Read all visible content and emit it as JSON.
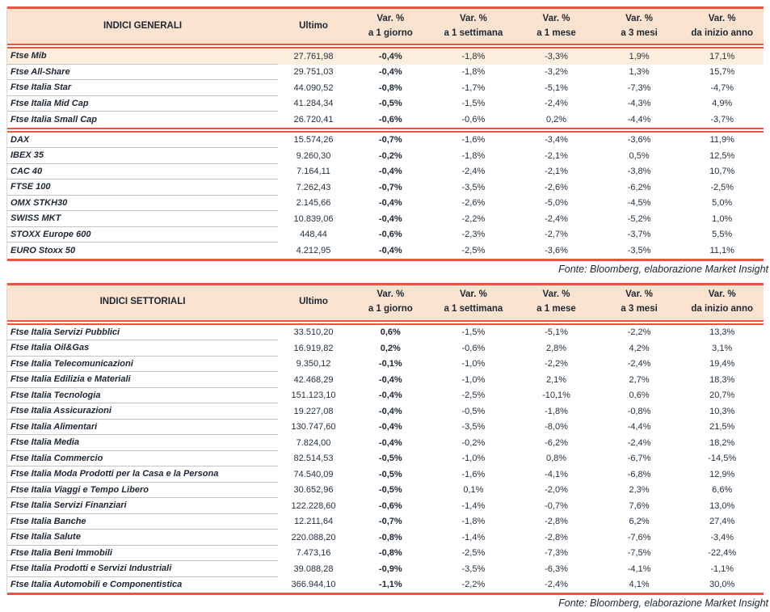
{
  "colors": {
    "rule_red": "#f0543c",
    "header_bg": "#fbe3d0",
    "stripe_bg": "#fdeede",
    "text": "#1c2733",
    "row_separator": "#c4c4c4"
  },
  "tables": [
    {
      "title": "INDICI GENERALI",
      "ultimo_header": "Ultimo",
      "var_headers": [
        {
          "line1": "Var. %",
          "line2": "a 1 giorno"
        },
        {
          "line1": "Var. %",
          "line2": "a 1 settimana"
        },
        {
          "line1": "Var. %",
          "line2": "a 1 mese"
        },
        {
          "line1": "Var. %",
          "line2": "a 3 mesi"
        },
        {
          "line1": "Var. %",
          "line2": "da inizio anno"
        }
      ],
      "sections": [
        {
          "rows": [
            {
              "name": "Ftse Mib",
              "ultimo": "27.761,98",
              "vals": [
                "-0,4%",
                "-1,8%",
                "-3,3%",
                "1,9%",
                "17,1%"
              ],
              "striped": true
            },
            {
              "name": "Ftse All-Share",
              "ultimo": "29.751,03",
              "vals": [
                "-0,4%",
                "-1,8%",
                "-3,2%",
                "1,3%",
                "15,7%"
              ],
              "striped": false
            },
            {
              "name": "Ftse Italia Star",
              "ultimo": "44.090,52",
              "vals": [
                "-0,8%",
                "-1,7%",
                "-5,1%",
                "-7,3%",
                "-4,7%"
              ],
              "striped": false
            },
            {
              "name": "Ftse Italia Mid Cap",
              "ultimo": "41.284,34",
              "vals": [
                "-0,5%",
                "-1,5%",
                "-2,4%",
                "-4,3%",
                "4,9%"
              ],
              "striped": false
            },
            {
              "name": "Ftse Italia Small Cap",
              "ultimo": "26.720,41",
              "vals": [
                "-0,6%",
                "-0,6%",
                "0,2%",
                "-4,4%",
                "-3,7%"
              ],
              "striped": false
            }
          ]
        },
        {
          "rows": [
            {
              "name": "DAX",
              "ultimo": "15.574,26",
              "vals": [
                "-0,7%",
                "-1,6%",
                "-3,4%",
                "-3,6%",
                "11,9%"
              ],
              "striped": false
            },
            {
              "name": "IBEX 35",
              "ultimo": "9.260,30",
              "vals": [
                "-0,2%",
                "-1,8%",
                "-2,1%",
                "0,5%",
                "12,5%"
              ],
              "striped": false
            },
            {
              "name": "CAC 40",
              "ultimo": "7.164,11",
              "vals": [
                "-0,4%",
                "-2,4%",
                "-2,1%",
                "-3,8%",
                "10,7%"
              ],
              "striped": false
            },
            {
              "name": "FTSE 100",
              "ultimo": "7.262,43",
              "vals": [
                "-0,7%",
                "-3,5%",
                "-2,6%",
                "-6,2%",
                "-2,5%"
              ],
              "striped": false
            },
            {
              "name": "OMX STKH30",
              "ultimo": "2.145,66",
              "vals": [
                "-0,4%",
                "-2,6%",
                "-5,0%",
                "-4,5%",
                "5,0%"
              ],
              "striped": false
            },
            {
              "name": "SWISS MKT",
              "ultimo": "10.839,06",
              "vals": [
                "-0,4%",
                "-2,2%",
                "-2,4%",
                "-5,2%",
                "1,0%"
              ],
              "striped": false
            },
            {
              "name": "STOXX Europe 600",
              "ultimo": "448,44",
              "vals": [
                "-0,6%",
                "-2,3%",
                "-2,7%",
                "-3,7%",
                "5,5%"
              ],
              "striped": false
            },
            {
              "name": "EURO Stoxx 50",
              "ultimo": "4.212,95",
              "vals": [
                "-0,4%",
                "-2,5%",
                "-3,6%",
                "-3,5%",
                "11,1%"
              ],
              "striped": false
            }
          ]
        }
      ],
      "source": "Fonte: Bloomberg, elaborazione Market Insight"
    },
    {
      "title": "INDICI SETTORIALI",
      "ultimo_header": "Ultimo",
      "var_headers": [
        {
          "line1": "Var. %",
          "line2": "a 1 giorno"
        },
        {
          "line1": "Var. %",
          "line2": "a 1 settimana"
        },
        {
          "line1": "Var. %",
          "line2": "a 1 mese"
        },
        {
          "line1": "Var. %",
          "line2": "a 3 mesi"
        },
        {
          "line1": "Var. %",
          "line2": "da inizio anno"
        }
      ],
      "sections": [
        {
          "rows": [
            {
              "name": "Ftse Italia Servizi Pubblici",
              "ultimo": "33.510,20",
              "vals": [
                "0,6%",
                "-1,5%",
                "-5,1%",
                "-2,2%",
                "13,3%"
              ],
              "striped": false
            },
            {
              "name": "Ftse Italia Oil&Gas",
              "ultimo": "16.919,82",
              "vals": [
                "0,2%",
                "-0,6%",
                "2,8%",
                "4,2%",
                "3,1%"
              ],
              "striped": false
            },
            {
              "name": "Ftse Italia Telecomunicazioni",
              "ultimo": "9.350,12",
              "vals": [
                "-0,1%",
                "-1,0%",
                "-2,2%",
                "-2,4%",
                "19,4%"
              ],
              "striped": false
            },
            {
              "name": "Ftse Italia Edilizia e Materiali",
              "ultimo": "42.468,29",
              "vals": [
                "-0,4%",
                "-1,0%",
                "2,1%",
                "2,7%",
                "18,3%"
              ],
              "striped": false
            },
            {
              "name": "Ftse Italia Tecnologia",
              "ultimo": "151.123,10",
              "vals": [
                "-0,4%",
                "-2,5%",
                "-10,1%",
                "0,6%",
                "20,7%"
              ],
              "striped": false
            },
            {
              "name": "Ftse Italia Assicurazioni",
              "ultimo": "19.227,08",
              "vals": [
                "-0,4%",
                "-0,5%",
                "-1,8%",
                "-0,8%",
                "10,3%"
              ],
              "striped": false
            },
            {
              "name": "Ftse Italia Alimentari",
              "ultimo": "130.747,60",
              "vals": [
                "-0,4%",
                "-3,5%",
                "-8,0%",
                "-4,4%",
                "21,5%"
              ],
              "striped": false
            },
            {
              "name": "Ftse Italia Media",
              "ultimo": "7.824,00",
              "vals": [
                "-0,4%",
                "-0,2%",
                "-6,2%",
                "-2,4%",
                "18,2%"
              ],
              "striped": false
            },
            {
              "name": "Ftse Italia Commercio",
              "ultimo": "82.514,53",
              "vals": [
                "-0,5%",
                "-1,0%",
                "0,8%",
                "-6,7%",
                "-14,5%"
              ],
              "striped": false
            },
            {
              "name": "Ftse Italia Moda Prodotti per la Casa e la Persona",
              "ultimo": "74.540,09",
              "vals": [
                "-0,5%",
                "-1,6%",
                "-4,1%",
                "-6,8%",
                "12,9%"
              ],
              "striped": false
            },
            {
              "name": "Ftse Italia Viaggi e Tempo Libero",
              "ultimo": "30.652,96",
              "vals": [
                "-0,5%",
                "0,1%",
                "-2,0%",
                "2,3%",
                "6,6%"
              ],
              "striped": false
            },
            {
              "name": "Ftse Italia Servizi Finanziari",
              "ultimo": "122.228,60",
              "vals": [
                "-0,6%",
                "-1,4%",
                "-0,7%",
                "7,6%",
                "13,0%"
              ],
              "striped": false
            },
            {
              "name": "Ftse Italia Banche",
              "ultimo": "12.211,64",
              "vals": [
                "-0,7%",
                "-1,8%",
                "-2,8%",
                "6,2%",
                "27,4%"
              ],
              "striped": false
            },
            {
              "name": "Ftse Italia Salute",
              "ultimo": "220.088,20",
              "vals": [
                "-0,8%",
                "-1,4%",
                "-2,8%",
                "-7,6%",
                "-3,4%"
              ],
              "striped": false
            },
            {
              "name": "Ftse Italia Beni Immobili",
              "ultimo": "7.473,16",
              "vals": [
                "-0,8%",
                "-2,5%",
                "-7,3%",
                "-7,5%",
                "-22,4%"
              ],
              "striped": false
            },
            {
              "name": "Ftse Italia Prodotti e Servizi Industriali",
              "ultimo": "39.088,28",
              "vals": [
                "-0,9%",
                "-3,5%",
                "-6,3%",
                "-4,1%",
                "-1,1%"
              ],
              "striped": false
            },
            {
              "name": "Ftse Italia Automobili e Componentistica",
              "ultimo": "366.944,10",
              "vals": [
                "-1,1%",
                "-2,2%",
                "-2,4%",
                "4,1%",
                "30,0%"
              ],
              "striped": false
            }
          ]
        }
      ],
      "source": "Fonte: Bloomberg, elaborazione Market Insight"
    }
  ]
}
